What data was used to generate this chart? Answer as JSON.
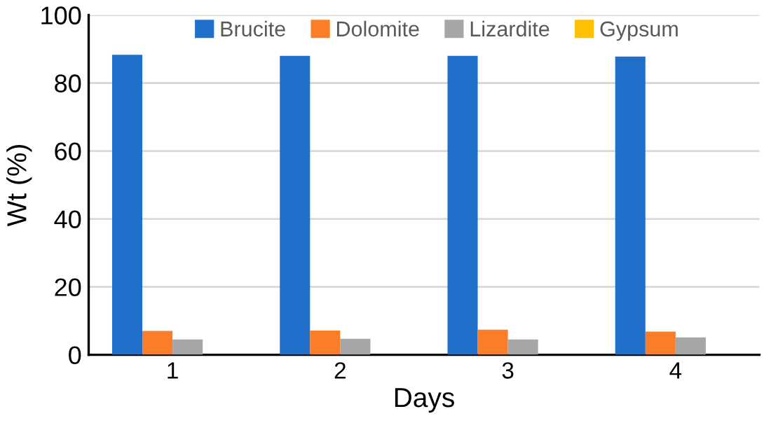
{
  "chart_data": {
    "type": "bar",
    "xlabel": "Days",
    "ylabel": "Wt (%)",
    "categories": [
      "1",
      "2",
      "3",
      "4"
    ],
    "series": [
      {
        "name": "Brucite",
        "color": "#1f6fcb",
        "values": [
          88.3,
          88.0,
          88.0,
          87.8
        ]
      },
      {
        "name": "Dolomite",
        "color": "#fb7d27",
        "values": [
          7.0,
          7.1,
          7.4,
          6.8
        ]
      },
      {
        "name": "Lizardite",
        "color": "#a6a6a6",
        "values": [
          4.5,
          4.7,
          4.5,
          5.1
        ]
      },
      {
        "name": "Gypsum",
        "color": "#ffc000",
        "values": [
          0,
          0,
          0,
          0
        ]
      }
    ],
    "ylim": [
      0,
      100
    ],
    "yticks": [
      0,
      20,
      40,
      60,
      80,
      100
    ],
    "grid": "y",
    "legend": "top"
  }
}
